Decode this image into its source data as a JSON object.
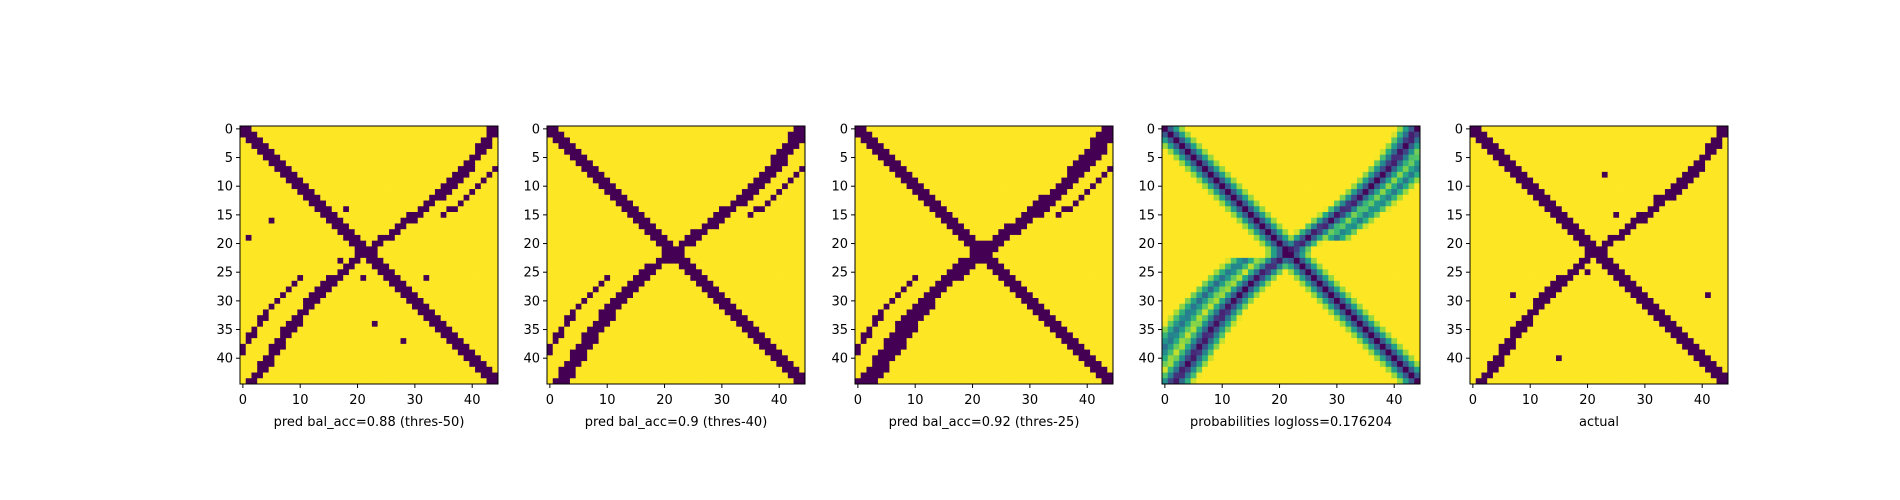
{
  "chart_data": [
    {
      "type": "heatmap",
      "xlabel": "pred bal_acc=0.88 (thres-50)",
      "colormap": "viridis",
      "value_range": [
        0,
        1
      ],
      "grid_size": 45,
      "binary": true,
      "pattern": "X-shaped band (low values) of main diagonal and anti-diagonal band, with faint parallel secondary lines",
      "xticks": [
        0,
        10,
        20,
        30,
        40
      ],
      "yticks": [
        0,
        5,
        10,
        15,
        20,
        25,
        30,
        35,
        40
      ],
      "band_halfwidth": 1.2,
      "secondary_lines": true,
      "sparse_dots": true
    },
    {
      "type": "heatmap",
      "xlabel": "pred bal_acc=0.9 (thres-40)",
      "colormap": "viridis",
      "value_range": [
        0,
        1
      ],
      "grid_size": 45,
      "binary": true,
      "xticks": [
        0,
        10,
        20,
        30,
        40
      ],
      "yticks": [
        0,
        5,
        10,
        15,
        20,
        25,
        30,
        35,
        40
      ],
      "band_halfwidth": 1.5,
      "secondary_lines": true,
      "sparse_dots": false
    },
    {
      "type": "heatmap",
      "xlabel": "pred bal_acc=0.92 (thres-25)",
      "colormap": "viridis",
      "value_range": [
        0,
        1
      ],
      "grid_size": 45,
      "binary": true,
      "xticks": [
        0,
        10,
        20,
        30,
        40
      ],
      "yticks": [
        0,
        5,
        10,
        15,
        20,
        25,
        30,
        35,
        40
      ],
      "band_halfwidth": 1.9,
      "secondary_lines": true,
      "sparse_dots": false
    },
    {
      "type": "heatmap",
      "xlabel": "probabilities logloss=0.176204",
      "colormap": "viridis",
      "value_range": [
        0,
        1
      ],
      "grid_size": 45,
      "binary": false,
      "xticks": [
        0,
        10,
        20,
        30,
        40
      ],
      "yticks": [
        0,
        5,
        10,
        15,
        20,
        25,
        30,
        35,
        40
      ],
      "band_halfwidth": 2.2,
      "secondary_lines": true,
      "sparse_dots": false
    },
    {
      "type": "heatmap",
      "xlabel": "actual",
      "colormap": "viridis",
      "value_range": [
        0,
        1
      ],
      "grid_size": 45,
      "binary": true,
      "xticks": [
        0,
        10,
        20,
        30,
        40
      ],
      "yticks": [
        0,
        5,
        10,
        15,
        20,
        25,
        30,
        35,
        40
      ],
      "band_halfwidth": 1.2,
      "secondary_lines": false,
      "sparse_dots": true
    }
  ],
  "colors": {
    "low": "#440154",
    "high": "#fde725"
  }
}
